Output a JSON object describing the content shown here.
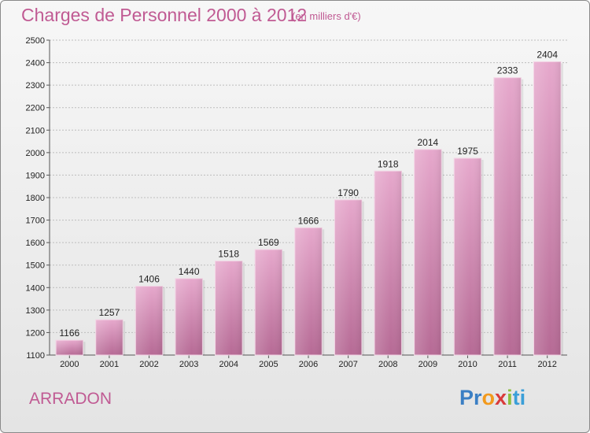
{
  "header": {
    "title": "Charges de Personnel 2000 à 2012",
    "subtitle": "(en milliers d'€)"
  },
  "footer": {
    "city": "ARRADON",
    "brand": {
      "letters": [
        "P",
        "r",
        "o",
        "x",
        "i",
        "t",
        "i"
      ],
      "colors": [
        "#3b7fc4",
        "#3b7fc4",
        "#f29a1d",
        "#d93a3a",
        "#8cbf3f",
        "#3b9fd8",
        "#3b9fd8"
      ]
    }
  },
  "chart_data": {
    "type": "bar",
    "categories": [
      "2000",
      "2001",
      "2002",
      "2003",
      "2004",
      "2005",
      "2006",
      "2007",
      "2008",
      "2009",
      "2010",
      "2011",
      "2012"
    ],
    "values": [
      1166,
      1257,
      1406,
      1440,
      1518,
      1569,
      1666,
      1790,
      1918,
      2014,
      1975,
      2333,
      2404
    ],
    "yticks": [
      "1100",
      "1200",
      "1300",
      "1400",
      "1500",
      "1600",
      "1700",
      "1800",
      "1900",
      "2000",
      "2100",
      "2200",
      "2300",
      "2400",
      "2500"
    ],
    "ylim": [
      1100,
      2500
    ],
    "grid": true,
    "bar_color": "#c96f9f",
    "data_labels": true
  }
}
